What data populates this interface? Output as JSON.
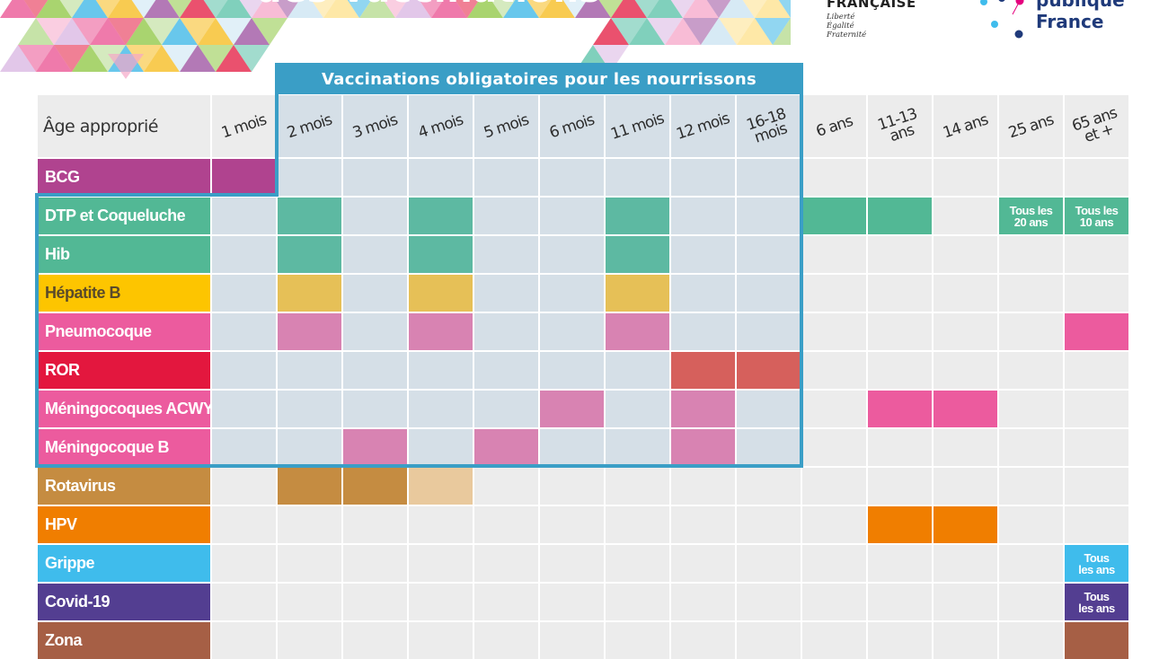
{
  "banner": {
    "title": "des vaccinations",
    "rf_name": "FRANÇAISE",
    "rf_motto": [
      "Liberté",
      "Égalité",
      "Fraternité"
    ],
    "spf_line1": "publique",
    "spf_line2": "France"
  },
  "obligatory_header": "Vaccinations obligatoires pour les nourrissons",
  "corner_label": "Âge approprié",
  "ages": [
    "1 mois",
    "2 mois",
    "3 mois",
    "4 mois",
    "5 mois",
    "6 mois",
    "11 mois",
    "12 mois",
    "16-18\nmois",
    "6 ans",
    "11-13\nans",
    "14 ans",
    "25 ans",
    "65 ans\net +"
  ],
  "colors": {
    "teal": "#52b895",
    "teal_soft": "#5db9a2",
    "yellow_soft": "#e6c057",
    "pink_soft": "#d883b2",
    "pink": "#ec5b9e",
    "red_soft": "#d6605c",
    "brown": "#c58c41",
    "beige": "#e9c99d",
    "orange": "#f07e00",
    "sky": "#3fbcec",
    "purple": "#533e91",
    "zona": "#a65f45",
    "frame": "#3a9ec6"
  },
  "vaccines": [
    {
      "name": "BCG",
      "color": "#b0438f",
      "cells": [
        {
          "col": 0,
          "color": "#b0438f"
        }
      ]
    },
    {
      "name": "DTP et Coqueluche",
      "color": "#52b895",
      "cells": [
        {
          "col": 1,
          "color": "#5db9a2"
        },
        {
          "col": 3,
          "color": "#5db9a2"
        },
        {
          "col": 6,
          "color": "#5db9a2"
        },
        {
          "col": 9,
          "color": "#52b895"
        },
        {
          "col": 10,
          "color": "#52b895"
        },
        {
          "col": 12,
          "color": "#52b895",
          "text": "Tous les\n20 ans"
        },
        {
          "col": 13,
          "color": "#52b895",
          "text": "Tous les\n10 ans"
        }
      ]
    },
    {
      "name": "Hib",
      "color": "#52b895",
      "cells": [
        {
          "col": 1,
          "color": "#5db9a2"
        },
        {
          "col": 3,
          "color": "#5db9a2"
        },
        {
          "col": 6,
          "color": "#5db9a2"
        }
      ]
    },
    {
      "name": "Hépatite B",
      "color": "#fdc500",
      "label_color": "#5a4a2a",
      "cells": [
        {
          "col": 1,
          "color": "#e6c057"
        },
        {
          "col": 3,
          "color": "#e6c057"
        },
        {
          "col": 6,
          "color": "#e6c057"
        }
      ]
    },
    {
      "name": "Pneumocoque",
      "color": "#ec5b9e",
      "cells": [
        {
          "col": 1,
          "color": "#d883b2"
        },
        {
          "col": 3,
          "color": "#d883b2"
        },
        {
          "col": 6,
          "color": "#d883b2"
        },
        {
          "col": 13,
          "color": "#ec5b9e"
        }
      ]
    },
    {
      "name": "ROR",
      "color": "#e3173e",
      "cells": [
        {
          "col": 7,
          "color": "#d6605c"
        },
        {
          "col": 8,
          "color": "#d6605c"
        }
      ]
    },
    {
      "name": "Méningocoques ACWY",
      "color": "#ec5b9e",
      "cells": [
        {
          "col": 5,
          "color": "#d883b2"
        },
        {
          "col": 7,
          "color": "#d883b2"
        },
        {
          "col": 10,
          "color": "#ec5b9e"
        },
        {
          "col": 11,
          "color": "#ec5b9e"
        }
      ]
    },
    {
      "name": "Méningocoque B",
      "color": "#ec5b9e",
      "cells": [
        {
          "col": 2,
          "color": "#d883b2"
        },
        {
          "col": 4,
          "color": "#d883b2"
        },
        {
          "col": 7,
          "color": "#d883b2"
        }
      ]
    },
    {
      "name": "Rotavirus",
      "color": "#c58c41",
      "cells": [
        {
          "col": 1,
          "color": "#c58c41"
        },
        {
          "col": 2,
          "color": "#c58c41"
        },
        {
          "col": 3,
          "color": "#e9c99d"
        }
      ]
    },
    {
      "name": "HPV",
      "color": "#f07e00",
      "cells": [
        {
          "col": 10,
          "color": "#f07e00"
        },
        {
          "col": 11,
          "color": "#f07e00"
        }
      ]
    },
    {
      "name": "Grippe",
      "color": "#3fbcec",
      "cells": [
        {
          "col": 13,
          "color": "#3fbcec",
          "text": "Tous\nles ans"
        }
      ]
    },
    {
      "name": "Covid-19",
      "color": "#533e91",
      "cells": [
        {
          "col": 13,
          "color": "#533e91",
          "text": "Tous\nles ans"
        }
      ]
    },
    {
      "name": "Zona",
      "color": "#a65f45",
      "cells": [
        {
          "col": 13,
          "color": "#a65f45"
        }
      ]
    }
  ]
}
